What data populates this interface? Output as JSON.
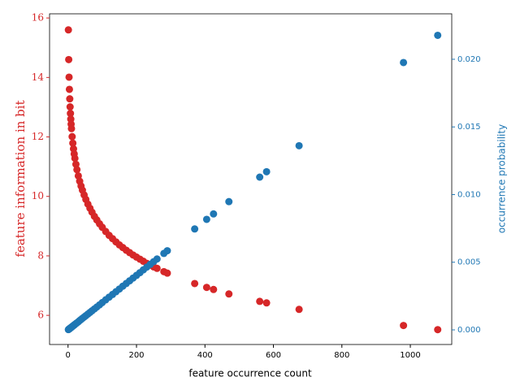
{
  "chart_data": {
    "type": "scatter",
    "xlabel": "feature occurrence count",
    "ylabel": "feature information in bit",
    "y2label": "occurrence probability",
    "x": [
      1,
      2,
      3,
      4,
      5,
      6,
      7,
      8,
      9,
      10,
      12,
      14,
      16,
      18,
      20,
      23,
      26,
      30,
      34,
      38,
      42,
      47,
      52,
      58,
      64,
      70,
      77,
      84,
      92,
      100,
      110,
      120,
      130,
      140,
      150,
      160,
      170,
      180,
      190,
      200,
      210,
      220,
      230,
      240,
      250,
      260,
      280,
      290,
      370,
      405,
      425,
      470,
      560,
      580,
      675,
      980,
      1080
    ],
    "series": [
      {
        "color": "#d62728",
        "axis": "y",
        "values": [
          15.6,
          14.6,
          14.01,
          13.6,
          13.28,
          13.01,
          12.79,
          12.6,
          12.43,
          12.28,
          12.01,
          11.79,
          11.6,
          11.43,
          11.28,
          11.08,
          10.9,
          10.69,
          10.51,
          10.35,
          10.21,
          10.05,
          9.9,
          9.74,
          9.6,
          9.47,
          9.33,
          9.21,
          9.08,
          8.96,
          8.82,
          8.69,
          8.58,
          8.47,
          8.37,
          8.28,
          8.19,
          8.11,
          8.03,
          7.96,
          7.89,
          7.82,
          7.75,
          7.69,
          7.63,
          7.58,
          7.47,
          7.42,
          7.07,
          6.94,
          6.87,
          6.72,
          6.47,
          6.42,
          6.2,
          5.66,
          5.52
        ]
      },
      {
        "color": "#1f77b4",
        "axis": "y2",
        "values": [
          2e-05,
          4e-05,
          6e-05,
          8e-05,
          0.0001,
          0.00012,
          0.00014,
          0.00016,
          0.00018,
          0.0002,
          0.00024,
          0.00028,
          0.00032,
          0.00036,
          0.0004,
          0.00046,
          0.00052,
          0.0006,
          0.00069,
          0.00077,
          0.00085,
          0.00095,
          0.00105,
          0.00117,
          0.00129,
          0.00141,
          0.00155,
          0.00169,
          0.00185,
          0.00202,
          0.00222,
          0.00242,
          0.00262,
          0.00282,
          0.00302,
          0.00323,
          0.00343,
          0.00363,
          0.00383,
          0.00403,
          0.00423,
          0.00444,
          0.00464,
          0.00484,
          0.00504,
          0.00524,
          0.00565,
          0.00585,
          0.00746,
          0.00817,
          0.00857,
          0.00948,
          0.01129,
          0.01169,
          0.01361,
          0.01976,
          0.02177
        ]
      }
    ],
    "xlim": [
      -54,
      1121
    ],
    "xticks": [
      0,
      200,
      400,
      600,
      800,
      1000
    ],
    "ylim": [
      5.02,
      16.14
    ],
    "yticks": [
      6,
      8,
      10,
      12,
      14,
      16
    ],
    "y2lim": [
      -0.00108,
      0.02336
    ],
    "y2ticks": [
      {
        "value": 0,
        "label": "0.000"
      },
      {
        "value": 0.005,
        "label": "0.005"
      },
      {
        "value": 0.01,
        "label": "0.010"
      },
      {
        "value": 0.015,
        "label": "0.015"
      },
      {
        "value": 0.02,
        "label": "0.020"
      }
    ],
    "ycolor": "#d62728",
    "y2color": "#1f77b4"
  }
}
